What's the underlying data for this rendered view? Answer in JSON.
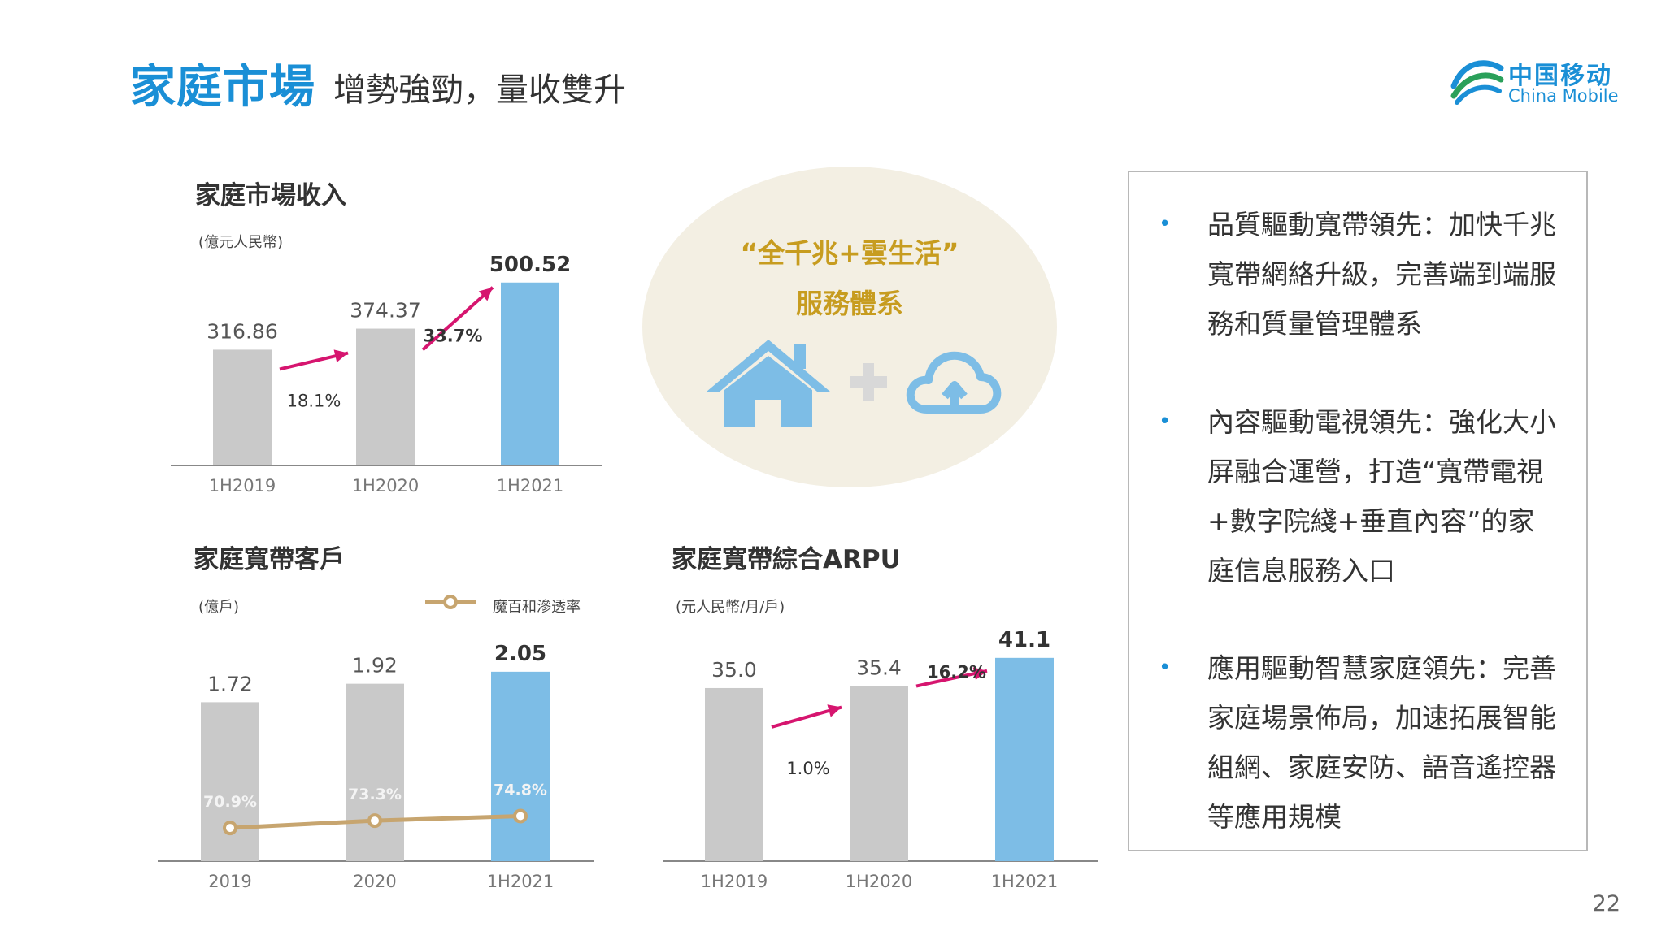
{
  "header": {
    "title": "家庭市場",
    "subtitle": "增勢強勁，量收雙升"
  },
  "logo": {
    "cn": "中国移动",
    "en": "China Mobile"
  },
  "center": {
    "line1": "“全千兆+雲生活”",
    "line2": "服務體系"
  },
  "bullets": [
    {
      "text": "品質驅動寬帶領先：加快千兆寬帶網絡升級，完善端到端服務和質量管理體系"
    },
    {
      "text": "內容驅動電視領先：強化大小屏融合運營，打造“寬帶電視+數字院綫+垂直內容”的家庭信息服務入口"
    },
    {
      "text": "應用驅動智慧家庭領先：完善家庭場景佈局，加速拓展智能組網、家庭安防、語音遙控器等應用規模"
    }
  ],
  "page_number": "22",
  "colors": {
    "gray_bar": "#c9c9c9",
    "blue_bar": "#7dbde6",
    "arrow": "#d6156f",
    "line": "#c7a56f",
    "brand": "#1a8fd6"
  },
  "chart_data": [
    {
      "type": "bar",
      "title": "家庭市場收入",
      "unit": "(億元人民幣)",
      "categories": [
        "1H2019",
        "1H2020",
        "1H2021"
      ],
      "values": [
        316.86,
        374.37,
        500.52
      ],
      "value_labels": [
        "316.86",
        "374.37",
        "500.52"
      ],
      "highlight_index": 2,
      "growth": [
        {
          "from": 0,
          "to": 1,
          "label": "18.1%"
        },
        {
          "from": 1,
          "to": 2,
          "label": "33.7%"
        }
      ],
      "ylim": [
        0,
        600
      ]
    },
    {
      "type": "bar",
      "title": "家庭寬帶客戶",
      "unit": "(億戶)",
      "categories": [
        "2019",
        "2020",
        "1H2021"
      ],
      "values": [
        1.72,
        1.92,
        2.05
      ],
      "value_labels": [
        "1.72",
        "1.92",
        "2.05"
      ],
      "highlight_index": 2,
      "ylim": [
        0,
        2.55
      ],
      "line_series": {
        "name": "魔百和滲透率",
        "values": [
          70.9,
          73.3,
          74.8
        ],
        "labels": [
          "70.9%",
          "73.3%",
          "74.8%"
        ]
      }
    },
    {
      "type": "bar",
      "title": "家庭寬帶綜合ARPU",
      "unit": "(元人民幣/月/戶)",
      "categories": [
        "1H2019",
        "1H2020",
        "1H2021"
      ],
      "values": [
        35.0,
        35.4,
        41.1
      ],
      "value_labels": [
        "35.0",
        "35.4",
        "41.1"
      ],
      "highlight_index": 2,
      "growth": [
        {
          "from": 0,
          "to": 1,
          "label": "1.0%"
        },
        {
          "from": 1,
          "to": 2,
          "label": "16.2%"
        }
      ],
      "ylim": [
        0,
        46
      ]
    }
  ]
}
